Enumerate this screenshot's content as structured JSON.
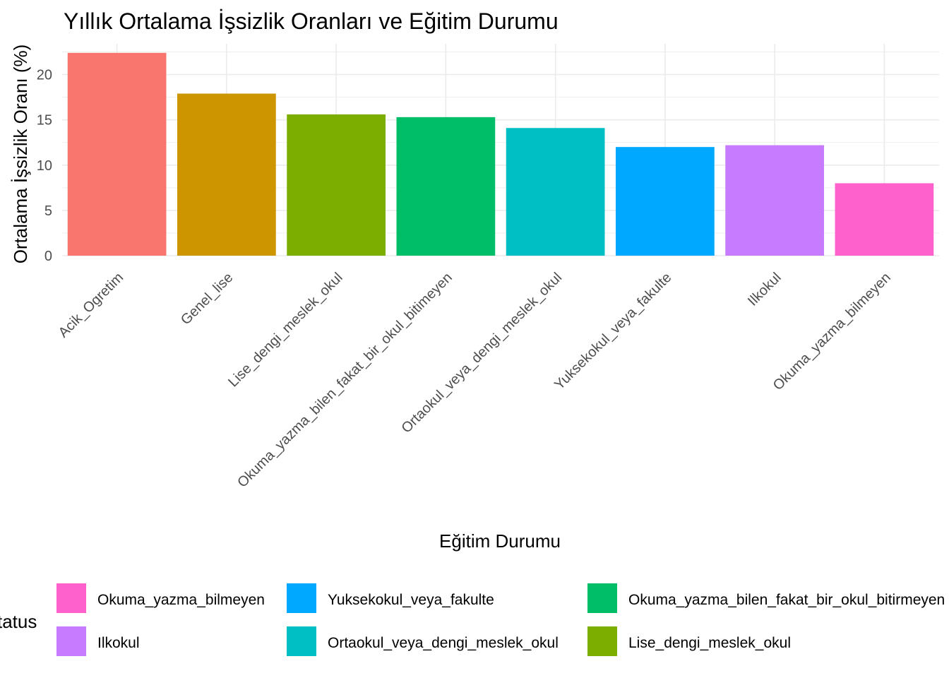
{
  "chart_data": {
    "type": "bar",
    "title": "Yıllık Ortalama İşsizlik Oranları ve Eğitim Durumu",
    "xlabel": "Eğitim Durumu",
    "ylabel": "Ortalama İşsizlik Oranı (%)",
    "ylim": [
      0,
      23.4
    ],
    "yticks": [
      0,
      5,
      10,
      15,
      20
    ],
    "grid": true,
    "categories": [
      "Acik_Ogretim",
      "Genel_lise",
      "Lise_dengi_meslek_okul",
      "Okuma_yazma_bilen_fakat_bir_okul_bitimeyen",
      "Ortaokul_veya_dengi_meslek_okul",
      "Yuksekokul_veya_fakulte",
      "Ilkokul",
      "Okuma_yazma_bilmeyen"
    ],
    "values": [
      22.4,
      17.9,
      15.6,
      15.3,
      14.1,
      12.0,
      12.2,
      8.0
    ],
    "colors": [
      "#F8766D",
      "#CD9600",
      "#7CAE00",
      "#00BE67",
      "#00BFC4",
      "#00A9FF",
      "#C77CFF",
      "#FF61CC"
    ]
  },
  "legend": {
    "title": "tatus",
    "position": "bottom",
    "items": [
      {
        "label": "Okuma_yazma_bilmeyen",
        "color": "#FF61CC"
      },
      {
        "label": "Ilkokul",
        "color": "#C77CFF"
      },
      {
        "label": "Yuksekokul_veya_fakulte",
        "color": "#00A9FF"
      },
      {
        "label": "Ortaokul_veya_dengi_meslek_okul",
        "color": "#00BFC4"
      },
      {
        "label": "Okuma_yazma_bilen_fakat_bir_okul_bitirmeyen",
        "color": "#00BE67"
      },
      {
        "label": "Lise_dengi_meslek_okul",
        "color": "#7CAE00"
      }
    ]
  }
}
